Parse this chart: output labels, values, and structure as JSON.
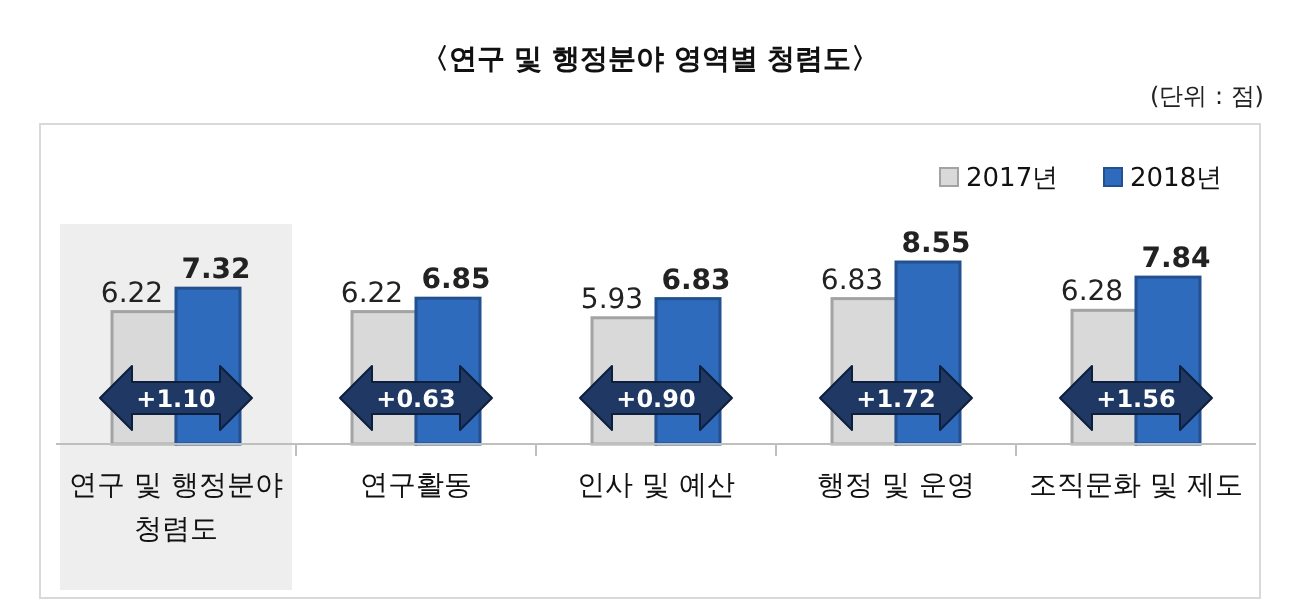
{
  "chart_data": {
    "type": "bar",
    "title": "〈연구 및 행정분야 영역별 청렴도〉",
    "categories": [
      "연구 및 행정분야 청렴도",
      "연구활동",
      "인사 및 예산",
      "행정 및 운영",
      "조직문화 및 제도"
    ],
    "series": [
      {
        "name": "2017년",
        "color": "#d9d9d9",
        "values": [
          6.22,
          6.22,
          5.93,
          6.83,
          6.28
        ]
      },
      {
        "name": "2018년",
        "color": "#2e6bbd",
        "values": [
          7.32,
          6.85,
          6.83,
          8.55,
          7.84
        ]
      }
    ],
    "data_labels": true,
    "legend": "top right",
    "grid": false,
    "bands": [
      {
        "axis": "x",
        "from": "연구 및 행정분야 청렴도",
        "to": "연구 및 행정분야 청렴도",
        "color": "#eeeeee"
      }
    ],
    "annotations": [
      "(단위 : 점)",
      {
        "text": "+1.10",
        "x": "연구 및 행정분야 청렴도"
      },
      {
        "text": "+0.63",
        "x": "연구활동"
      },
      {
        "text": "+0.90",
        "x": "인사 및 예산"
      },
      {
        "text": "+1.72",
        "x": "행정 및 운영"
      },
      {
        "text": "+1.56",
        "x": "조직문화 및 제도"
      }
    ]
  }
}
